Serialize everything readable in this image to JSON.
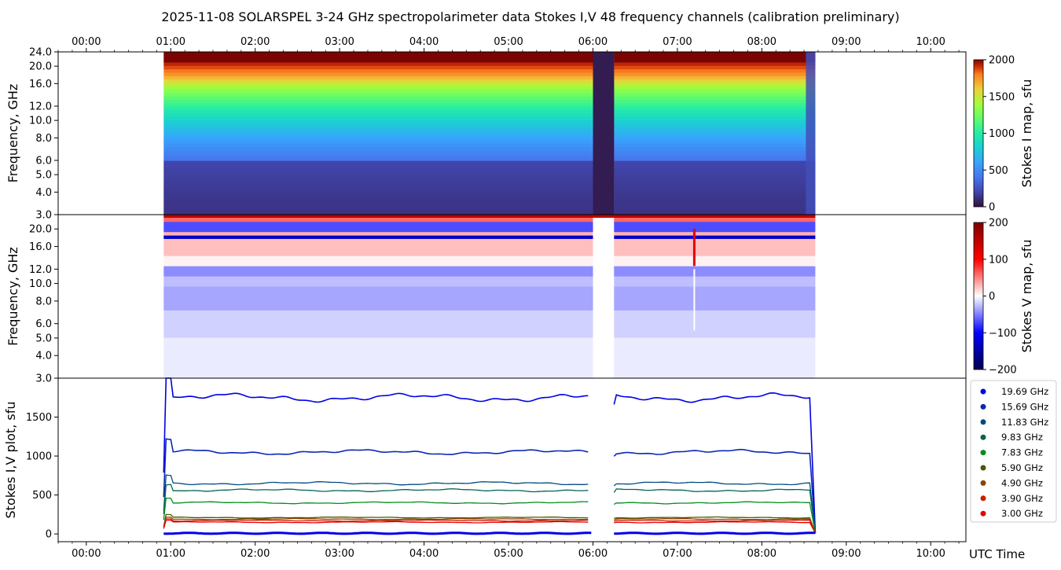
{
  "title": "2025-11-08  SOLARSPEL  3-24 GHz spectropolarimeter data   Stokes I,V   48 frequency channels   (calibration preliminary)",
  "chart_data": [
    {
      "type": "heatmap",
      "name": "stokes-i-map",
      "ylabel": "Frequency, GHz",
      "yscale": "log",
      "ylim": [
        3.0,
        24.0
      ],
      "yticks": [
        "3.0",
        "4.0",
        "5.0",
        "6.0",
        "8.0",
        "10.0",
        "12.0",
        "16.0",
        "20.0",
        "24.0"
      ],
      "colorbar": {
        "label": "Stokes I map, sfu",
        "range": [
          0,
          2000
        ],
        "ticks": [
          "0",
          "500",
          "1000",
          "1500",
          "2000"
        ],
        "colormap": "turbo"
      },
      "observation_segments": [
        [
          "00:55",
          "06:00"
        ],
        [
          "06:15",
          "08:38"
        ]
      ],
      "features": [
        {
          "time": "06:00-06:15",
          "description": "gap"
        }
      ]
    },
    {
      "type": "heatmap",
      "name": "stokes-v-map",
      "ylabel": "Frequency, GHz",
      "yscale": "log",
      "ylim": [
        3.0,
        24.0
      ],
      "yticks": [
        "3.0",
        "4.0",
        "5.0",
        "6.0",
        "8.0",
        "10.0",
        "12.0",
        "16.0",
        "20.0"
      ],
      "colorbar": {
        "label": "Stokes V map, sfu",
        "range": [
          -200,
          200
        ],
        "ticks": [
          "−200",
          "−100",
          "0",
          "100",
          "200"
        ],
        "colormap": "seismic"
      },
      "features": [
        {
          "time": "07:12",
          "description": "short burst"
        }
      ]
    },
    {
      "type": "scatter",
      "name": "stokes-iv-plot",
      "ylabel": "Stokes I,V plot, sfu",
      "xlabel": "UTC Time",
      "xlim": [
        "23:40",
        "10:25"
      ],
      "xticks": [
        "00:00",
        "01:00",
        "02:00",
        "03:00",
        "04:00",
        "05:00",
        "06:00",
        "07:00",
        "08:00",
        "09:00",
        "10:00"
      ],
      "ylim": [
        -100,
        2000
      ],
      "yticks": [
        "0",
        "500",
        "1000",
        "1500"
      ],
      "legend_position": "right",
      "series": [
        {
          "name": "19.69 GHz",
          "color": "#0000e6",
          "approx_level": 1750
        },
        {
          "name": "15.69 GHz",
          "color": "#0a28b4",
          "approx_level": 1050
        },
        {
          "name": "11.83 GHz",
          "color": "#004b80",
          "approx_level": 650
        },
        {
          "name": "9.83 GHz",
          "color": "#006450",
          "approx_level": 560
        },
        {
          "name": "7.83 GHz",
          "color": "#008c1e",
          "approx_level": 400
        },
        {
          "name": "5.90 GHz",
          "color": "#465a00",
          "approx_level": 210
        },
        {
          "name": "4.90 GHz",
          "color": "#8c4100",
          "approx_level": 190
        },
        {
          "name": "3.90 GHz",
          "color": "#c81e00",
          "approx_level": 170
        },
        {
          "name": "3.00 GHz",
          "color": "#e60000",
          "approx_level": 150
        }
      ]
    }
  ]
}
